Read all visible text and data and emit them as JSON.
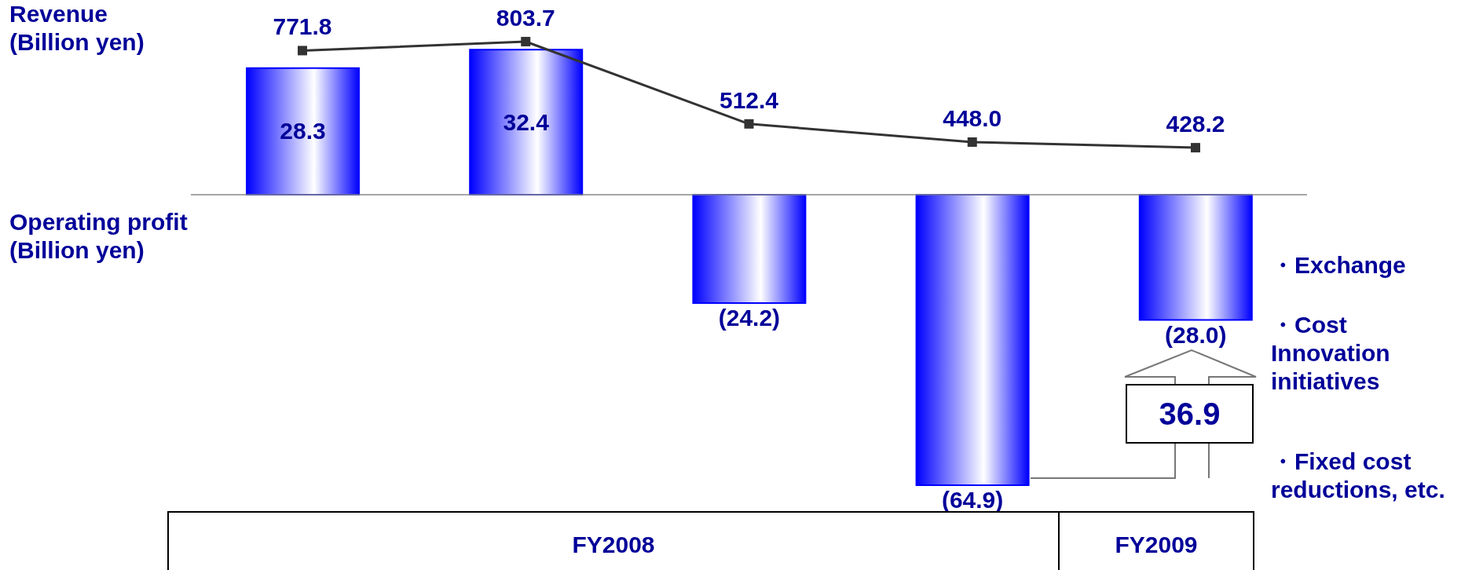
{
  "chart_data": [
    {
      "type": "line",
      "ylabel": "Revenue (Billion yen)",
      "categories": [
        null,
        null,
        null,
        null,
        null
      ],
      "marker": "square",
      "series": [
        {
          "color": "#333333",
          "values": [
            771.8,
            803.7,
            512.4,
            448.0,
            428.2
          ],
          "value_labels": [
            "771.8",
            "803.7",
            "512.4",
            "448.0",
            "428.2"
          ]
        }
      ]
    },
    {
      "type": "bar",
      "ylabel": "Operating profit (Billion yen)",
      "categories": [
        null,
        null,
        null,
        null,
        null
      ],
      "series": [
        {
          "color": "#0000ff",
          "values": [
            28.3,
            32.4,
            -24.2,
            -64.9,
            -28.0
          ],
          "value_labels": [
            "28.3",
            "32.4",
            "(24.2)",
            "(64.9)",
            "(28.0)"
          ]
        }
      ],
      "annotations": [
        "FY2008",
        "FY2009",
        "36.9",
        "・Exchange",
        "・Cost Innovation initiatives",
        "・Fixed cost reductions, etc."
      ]
    }
  ]
}
